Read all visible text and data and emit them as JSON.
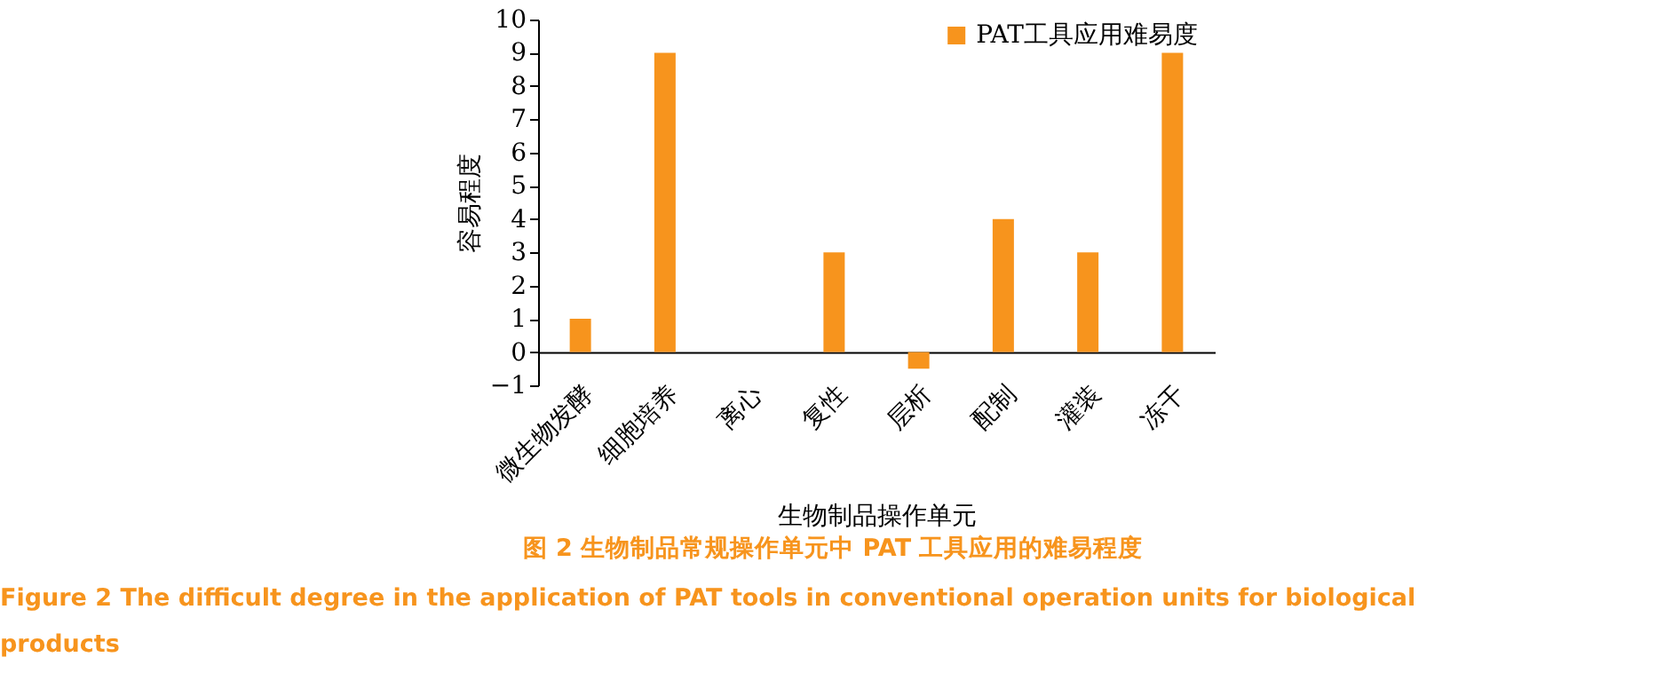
{
  "chart_data": {
    "type": "bar",
    "xlabel": "生物制品操作单元",
    "ylabel": "容易程度",
    "categories": [
      "微生物发酵",
      "细胞培养",
      "离心",
      "复性",
      "层析",
      "配制",
      "灌装",
      "冻干"
    ],
    "series": [
      {
        "name": "PAT工具应用难易度",
        "color": "#f7941d",
        "values": [
          1,
          9,
          0,
          3,
          -0.5,
          4,
          3,
          9
        ]
      }
    ],
    "ylim": [
      -1,
      10
    ],
    "yticks": [
      -1,
      0,
      1,
      2,
      3,
      4,
      5,
      6,
      7,
      8,
      9,
      10
    ],
    "grid": false,
    "legend": "top",
    "annotations": [
      "图 2  生物制品常规操作单元中 PAT 工具应用的难易程度",
      "Figure 2  The difficult degree in the application of PAT tools in conventional operation units for biological products"
    ]
  }
}
